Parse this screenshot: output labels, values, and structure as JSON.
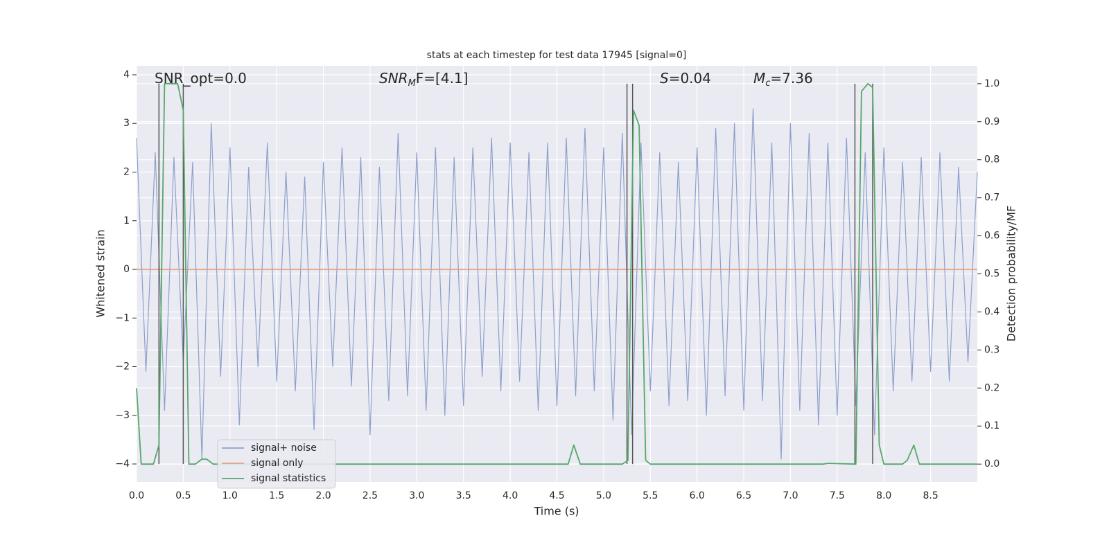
{
  "chart_data": {
    "type": "line",
    "title": "stats at each timestep for test data 17945 [signal=0]",
    "xlabel": "Time (s)",
    "ylabel": "Whitened strain",
    "y2label": "Detection probability/MF",
    "xlim": [
      0,
      9.0
    ],
    "ylim": [
      -4.37,
      4.185
    ],
    "y2lim": [
      -0.047,
      1.047
    ],
    "grid": true,
    "legend": "lower left",
    "xticks": [
      {
        "value": 0,
        "label": "0.0"
      },
      {
        "value": 0.5,
        "label": "0.5"
      },
      {
        "value": 1,
        "label": "1.0"
      },
      {
        "value": 1.5,
        "label": "1.5"
      },
      {
        "value": 2,
        "label": "2.0"
      },
      {
        "value": 2.5,
        "label": "2.5"
      },
      {
        "value": 3,
        "label": "3.0"
      },
      {
        "value": 3.5,
        "label": "3.5"
      },
      {
        "value": 4,
        "label": "4.0"
      },
      {
        "value": 4.5,
        "label": "4.5"
      },
      {
        "value": 5,
        "label": "5.0"
      },
      {
        "value": 5.5,
        "label": "5.5"
      },
      {
        "value": 6,
        "label": "6.0"
      },
      {
        "value": 6.5,
        "label": "6.5"
      },
      {
        "value": 7,
        "label": "7.0"
      },
      {
        "value": 7.5,
        "label": "7.5"
      },
      {
        "value": 8,
        "label": "8.0"
      },
      {
        "value": 8.5,
        "label": "8.5"
      }
    ],
    "yticks": [
      {
        "value": -4,
        "label": "−4"
      },
      {
        "value": -3,
        "label": "−3"
      },
      {
        "value": -2,
        "label": "−2"
      },
      {
        "value": -1,
        "label": "−1"
      },
      0,
      1,
      2,
      3,
      4
    ],
    "y2ticks": [
      {
        "value": 0,
        "label": "0.0"
      },
      {
        "value": 0.1,
        "label": "0.1"
      },
      {
        "value": 0.2,
        "label": "0.2"
      },
      {
        "value": 0.3,
        "label": "0.3"
      },
      {
        "value": 0.4,
        "label": "0.4"
      },
      {
        "value": 0.5,
        "label": "0.5"
      },
      {
        "value": 0.6,
        "label": "0.6"
      },
      {
        "value": 0.7,
        "label": "0.7"
      },
      {
        "value": 0.8,
        "label": "0.8"
      },
      {
        "value": 0.9,
        "label": "0.9"
      },
      {
        "value": 1,
        "label": "1.0"
      }
    ],
    "annotations": [
      {
        "text": "SNR_opt=0.0",
        "italic": false
      },
      {
        "text": "SNR",
        "sub": "M",
        "rest": "F=[4.1]",
        "italic": true
      },
      {
        "text": "S",
        "rest": "=0.04",
        "italic": true
      },
      {
        "text": "M",
        "sub": "c",
        "rest": "=7.36",
        "italic": true
      }
    ],
    "vlines": {
      "color": "#555555",
      "x": [
        0.24,
        0.5,
        5.25,
        5.31,
        7.69,
        7.88
      ],
      "y2range": [
        0,
        1.0
      ]
    },
    "series": [
      {
        "name": "signal+ noise",
        "color": "#8da0cb",
        "axis": "y",
        "x": [
          0,
          0.1,
          0.2,
          0.3,
          0.4,
          0.5,
          0.6,
          0.7,
          0.8,
          0.9,
          1,
          1.1,
          1.2,
          1.3,
          1.4,
          1.5,
          1.6,
          1.7,
          1.8,
          1.9,
          2,
          2.1,
          2.2,
          2.3,
          2.4,
          2.5,
          2.6,
          2.7,
          2.8,
          2.9,
          3,
          3.1,
          3.2,
          3.3,
          3.4,
          3.5,
          3.6,
          3.7,
          3.8,
          3.9,
          4,
          4.1,
          4.2,
          4.3,
          4.4,
          4.5,
          4.6,
          4.7,
          4.8,
          4.9,
          5,
          5.1,
          5.2,
          5.3,
          5.4,
          5.5,
          5.6,
          5.7,
          5.8,
          5.9,
          6,
          6.1,
          6.2,
          6.3,
          6.4,
          6.5,
          6.6,
          6.7,
          6.8,
          6.9,
          7,
          7.1,
          7.2,
          7.3,
          7.4,
          7.5,
          7.6,
          7.7,
          7.8,
          7.9,
          8,
          8.1,
          8.2,
          8.3,
          8.4,
          8.5,
          8.6,
          8.7,
          8.8,
          8.9,
          9
        ],
        "values": [
          2.7,
          -2.1,
          2.4,
          -2.9,
          2.3,
          -1.9,
          2.2,
          -3.9,
          3.0,
          -2.2,
          2.5,
          -3.2,
          2.1,
          -2.0,
          2.6,
          -2.3,
          2.0,
          -2.5,
          1.9,
          -3.3,
          2.2,
          -2.0,
          2.5,
          -2.4,
          2.3,
          -3.4,
          2.1,
          -2.7,
          2.8,
          -2.6,
          2.4,
          -2.9,
          2.5,
          -3.0,
          2.3,
          -2.8,
          2.5,
          -2.2,
          2.7,
          -2.5,
          2.6,
          -2.3,
          2.4,
          -2.9,
          2.6,
          -2.8,
          2.7,
          -2.6,
          2.9,
          -2.5,
          2.5,
          -3.1,
          2.8,
          -3.4,
          2.6,
          -2.5,
          2.4,
          -2.8,
          2.2,
          -2.7,
          2.5,
          -3.0,
          2.9,
          -2.6,
          3.0,
          -2.9,
          3.3,
          -2.7,
          2.6,
          -3.9,
          3.0,
          -2.9,
          2.8,
          -3.2,
          2.6,
          -3.0,
          2.7,
          -2.8,
          2.4,
          -3.4,
          2.5,
          -2.5,
          2.2,
          -2.3,
          2.3,
          -2.1,
          2.4,
          -2.3,
          2.1,
          -1.9,
          2.0
        ]
      },
      {
        "name": "signal only",
        "color": "#e5a07d",
        "axis": "y",
        "x": [
          0,
          9.0
        ],
        "values": [
          0,
          0
        ]
      },
      {
        "name": "signal statistics",
        "color": "#55a868",
        "axis": "y2",
        "x": [
          0,
          0.05,
          0.18,
          0.24,
          0.3,
          0.44,
          0.5,
          0.56,
          0.63,
          0.7,
          0.75,
          0.82,
          4.55,
          4.62,
          4.68,
          4.75,
          5.2,
          5.26,
          5.32,
          5.38,
          5.45,
          5.5,
          7.35,
          7.4,
          7.7,
          7.76,
          7.83,
          7.88,
          7.95,
          8.0,
          8.2,
          8.25,
          8.32,
          8.38,
          9.0
        ],
        "values": [
          0.2,
          0,
          0,
          0.05,
          1.0,
          1.0,
          0.93,
          0,
          0,
          0.013,
          0.013,
          0,
          0,
          0,
          0.05,
          0,
          0,
          0.01,
          0.93,
          0.89,
          0.01,
          0,
          0,
          0.002,
          0,
          0.98,
          1.0,
          0.99,
          0.05,
          0,
          0,
          0.01,
          0.05,
          0,
          0
        ]
      }
    ]
  }
}
